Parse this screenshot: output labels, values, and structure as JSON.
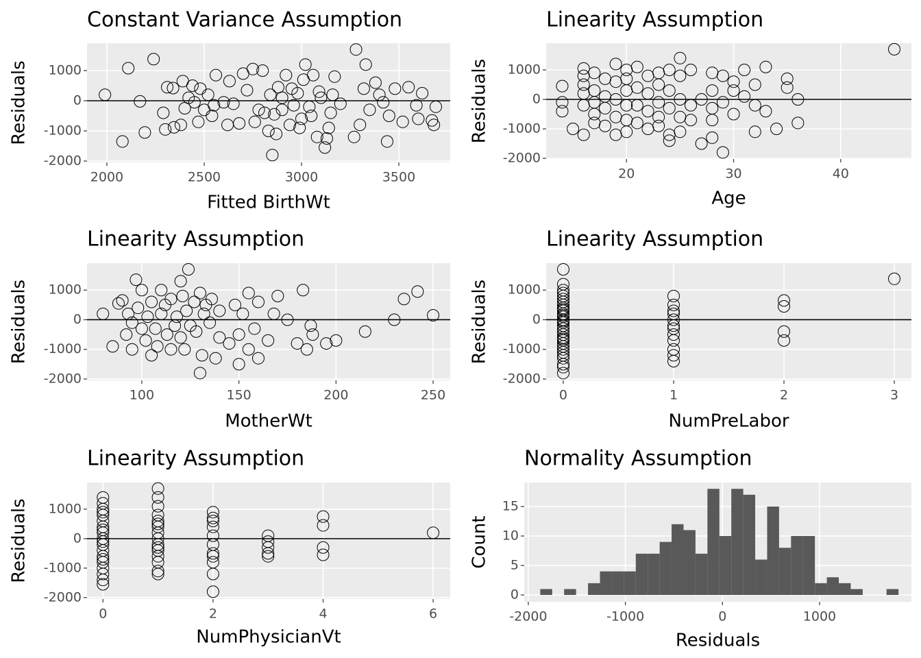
{
  "chart_data": [
    {
      "type": "scatter",
      "title": "Constant Variance Assumption",
      "xlabel": "Fitted BirthWt",
      "ylabel": "Residuals",
      "grid": true,
      "hline": 0,
      "color": "#000000",
      "xlim": [
        1898,
        3764
      ],
      "ylim": [
        -2045,
        1909
      ],
      "xticks": [
        2000,
        2500,
        3000,
        3500
      ],
      "yticks": [
        -2000,
        -1000,
        0,
        1000
      ],
      "x": [
        1990,
        2080,
        2110,
        2170,
        2195,
        2240,
        2290,
        2300,
        2310,
        2340,
        2345,
        2380,
        2390,
        2400,
        2420,
        2440,
        2450,
        2470,
        2480,
        2500,
        2520,
        2540,
        2550,
        2560,
        2620,
        2630,
        2650,
        2680,
        2700,
        2720,
        2750,
        2760,
        2800,
        2810,
        2830,
        2840,
        2850,
        2860,
        2880,
        2900,
        2920,
        2940,
        2960,
        2980,
        3000,
        3010,
        3020,
        3040,
        3060,
        3080,
        3090,
        3120,
        3130,
        3140,
        3150,
        3170,
        3200,
        3270,
        3280,
        3300,
        3320,
        3330,
        3350,
        3380,
        3400,
        3420,
        3440,
        3450,
        3480,
        3520,
        3550,
        3590,
        3600,
        3620,
        3670,
        3680,
        3690,
        2900,
        2950,
        3050,
        2780,
        2990,
        3100,
        2870,
        3160,
        2600
      ],
      "values": [
        200,
        -1350,
        1080,
        -20,
        -1050,
        1380,
        -400,
        -950,
        450,
        420,
        -880,
        -800,
        650,
        -250,
        100,
        500,
        -50,
        -700,
        400,
        -300,
        200,
        -500,
        -150,
        850,
        -800,
        650,
        -100,
        -750,
        900,
        350,
        1050,
        -700,
        1000,
        -400,
        -1000,
        200,
        -1800,
        -450,
        450,
        -300,
        850,
        -800,
        -150,
        250,
        -600,
        700,
        1200,
        -200,
        850,
        -1200,
        300,
        -1550,
        -1250,
        -900,
        -400,
        800,
        -100,
        -1200,
        1700,
        -800,
        400,
        1200,
        -300,
        600,
        200,
        -50,
        -1350,
        -500,
        400,
        -700,
        450,
        -150,
        -600,
        250,
        -650,
        -800,
        -200,
        100,
        400,
        -500,
        -300,
        -900,
        100,
        -1100,
        200,
        -50
      ]
    },
    {
      "type": "scatter",
      "title": "Linearity Assumption",
      "xlabel": "Age",
      "ylabel": "Residuals",
      "grid": true,
      "hline": 0,
      "color": "#000000",
      "xlim": [
        12.5,
        46.6
      ],
      "ylim": [
        -2023,
        1907
      ],
      "xticks": [
        20,
        30,
        40
      ],
      "yticks": [
        -2000,
        -1000,
        0,
        1000
      ],
      "x": [
        14,
        14,
        14,
        15,
        16,
        16,
        16,
        16,
        16,
        16,
        17,
        17,
        17,
        17,
        17,
        18,
        18,
        18,
        18,
        19,
        19,
        19,
        19,
        19,
        20,
        20,
        20,
        20,
        20,
        20,
        21,
        21,
        21,
        21,
        22,
        22,
        22,
        22,
        23,
        23,
        23,
        23,
        23,
        24,
        24,
        24,
        24,
        24,
        25,
        25,
        25,
        25,
        25,
        26,
        26,
        26,
        27,
        27,
        28,
        28,
        28,
        28,
        28,
        29,
        29,
        29,
        30,
        30,
        30,
        31,
        31,
        32,
        32,
        32,
        33,
        33,
        34,
        35,
        35,
        36,
        36,
        45
      ],
      "values": [
        450,
        -400,
        -100,
        -1000,
        1050,
        800,
        500,
        200,
        -200,
        -1200,
        900,
        300,
        -100,
        -500,
        -800,
        700,
        100,
        -300,
        -900,
        1200,
        600,
        0,
        -600,
        -1200,
        1000,
        700,
        300,
        -200,
        -700,
        -1100,
        1100,
        400,
        -200,
        -800,
        800,
        200,
        -400,
        -1000,
        900,
        500,
        -100,
        -600,
        -900,
        1000,
        300,
        -300,
        -1200,
        -1400,
        1400,
        800,
        0,
        -600,
        -1100,
        1000,
        -200,
        -700,
        -1500,
        0,
        900,
        300,
        -300,
        -700,
        -1300,
        800,
        -100,
        -1800,
        600,
        300,
        -500,
        1000,
        100,
        500,
        -1100,
        -200,
        1100,
        -400,
        -1000,
        700,
        400,
        0,
        -800,
        1700
      ]
    },
    {
      "type": "scatter",
      "title": "Linearity Assumption",
      "xlabel": "MotherWt",
      "ylabel": "Residuals",
      "grid": true,
      "hline": 0,
      "color": "#000000",
      "xlim": [
        71.8,
        258.8
      ],
      "ylim": [
        -2047,
        1907
      ],
      "xticks": [
        100,
        150,
        200,
        250
      ],
      "yticks": [
        -2000,
        -1000,
        0,
        1000
      ],
      "x": [
        80,
        85,
        88,
        90,
        92,
        93,
        95,
        95,
        97,
        98,
        100,
        100,
        102,
        103,
        105,
        105,
        107,
        108,
        110,
        110,
        112,
        113,
        115,
        115,
        117,
        118,
        120,
        120,
        121,
        122,
        123,
        124,
        125,
        127,
        128,
        130,
        130,
        131,
        132,
        133,
        135,
        136,
        138,
        140,
        140,
        145,
        148,
        150,
        150,
        152,
        155,
        155,
        158,
        160,
        160,
        165,
        168,
        170,
        175,
        180,
        183,
        185,
        187,
        188,
        195,
        200,
        215,
        230,
        235,
        242,
        250
      ],
      "values": [
        200,
        -900,
        550,
        650,
        -500,
        200,
        -1000,
        -100,
        1350,
        400,
        1000,
        -300,
        -700,
        100,
        -1200,
        600,
        -300,
        -900,
        1000,
        200,
        500,
        -500,
        700,
        -1000,
        -200,
        100,
        1300,
        -600,
        800,
        -1000,
        300,
        1700,
        -200,
        600,
        -400,
        900,
        -1800,
        -1200,
        200,
        500,
        -100,
        700,
        -1300,
        300,
        -600,
        -800,
        500,
        -500,
        -1500,
        200,
        -1000,
        900,
        -300,
        600,
        -1300,
        -700,
        200,
        800,
        0,
        -800,
        1000,
        -1000,
        -200,
        -500,
        -800,
        -700,
        -400,
        0,
        700,
        950,
        150
      ]
    },
    {
      "type": "scatter",
      "title": "Linearity Assumption",
      "xlabel": "NumPreLabor",
      "ylabel": "Residuals",
      "grid": true,
      "hline": 0,
      "color": "#000000",
      "xlim": [
        -0.155,
        3.155
      ],
      "ylim": [
        -2047,
        1907
      ],
      "xticks": [
        0,
        1,
        2,
        3
      ],
      "yticks": [
        -2000,
        -1000,
        0,
        1000
      ],
      "x": [
        0,
        0,
        0,
        0,
        0,
        0,
        0,
        0,
        0,
        0,
        0,
        0,
        0,
        0,
        0,
        0,
        0,
        0,
        0,
        0,
        0,
        0,
        0,
        0,
        0,
        0,
        0,
        0,
        0,
        0,
        0,
        0,
        0,
        1,
        1,
        1,
        1,
        1,
        1,
        1,
        1,
        1,
        1,
        1,
        1,
        2,
        2,
        2,
        2,
        3
      ],
      "values": [
        1700,
        1200,
        1000,
        900,
        800,
        600,
        500,
        400,
        300,
        200,
        100,
        0,
        -100,
        -200,
        -300,
        -400,
        -500,
        -600,
        -700,
        -800,
        -900,
        -1000,
        -1100,
        -1200,
        -1300,
        -1500,
        -1600,
        -1800,
        700,
        -50,
        150,
        350,
        -650,
        800,
        500,
        300,
        0,
        -200,
        -500,
        -700,
        -1000,
        -1200,
        -1400,
        200,
        -300,
        650,
        450,
        -400,
        -700,
        1380
      ]
    },
    {
      "type": "scatter",
      "title": "Linearity Assumption",
      "xlabel": "NumPhysicianVt",
      "ylabel": "Residuals",
      "grid": true,
      "hline": 0,
      "color": "#000000",
      "xlim": [
        -0.29,
        6.31
      ],
      "ylim": [
        -2050,
        1905
      ],
      "xticks": [
        0,
        2,
        4,
        6
      ],
      "yticks": [
        -2000,
        -1000,
        0,
        1000
      ],
      "x": [
        0,
        0,
        0,
        0,
        0,
        0,
        0,
        0,
        0,
        0,
        0,
        0,
        0,
        0,
        0,
        0,
        0,
        0,
        0,
        0,
        1,
        1,
        1,
        1,
        1,
        1,
        1,
        1,
        1,
        1,
        1,
        1,
        1,
        1,
        1,
        1,
        2,
        2,
        2,
        2,
        2,
        2,
        2,
        2,
        2,
        2,
        2,
        3,
        3,
        3,
        3,
        3,
        4,
        4,
        4,
        4,
        6
      ],
      "values": [
        1400,
        1200,
        1000,
        800,
        600,
        400,
        200,
        0,
        -200,
        -400,
        -600,
        -800,
        -1000,
        -1200,
        -1400,
        -1550,
        900,
        -100,
        300,
        -700,
        1700,
        1400,
        1100,
        800,
        600,
        400,
        200,
        0,
        -200,
        -400,
        -600,
        -800,
        -1100,
        -1200,
        500,
        -300,
        900,
        700,
        400,
        100,
        -200,
        -500,
        -800,
        -1200,
        -1800,
        600,
        -600,
        100,
        -100,
        -300,
        -500,
        -600,
        750,
        450,
        -300,
        -550,
        200
      ]
    },
    {
      "type": "histogram",
      "title": "Normality Assumption",
      "xlabel": "Residuals",
      "ylabel": "Count",
      "grid": true,
      "color": "#595959",
      "xlim": [
        -2042,
        1946
      ],
      "ylim": [
        -1.16,
        19.07
      ],
      "xticks": [
        -2000,
        -1000,
        0,
        1000
      ],
      "yticks": [
        0,
        5,
        10,
        15
      ],
      "bins": [
        -1877,
        -1754,
        -1631,
        -1508,
        -1385,
        -1262,
        -1139,
        -1016,
        -893,
        -770,
        -647,
        -524,
        -401,
        -278,
        -155,
        -32,
        91,
        214,
        337,
        460,
        583,
        706,
        829,
        952,
        1075,
        1198,
        1321,
        1444,
        1567,
        1690,
        1813
      ],
      "values": [
        1,
        0,
        1,
        0,
        2,
        4,
        4,
        4,
        7,
        7,
        9,
        12,
        11,
        7,
        18,
        10,
        18,
        17,
        6,
        15,
        8,
        10,
        10,
        2,
        3,
        2,
        1,
        0,
        0,
        1
      ]
    }
  ]
}
